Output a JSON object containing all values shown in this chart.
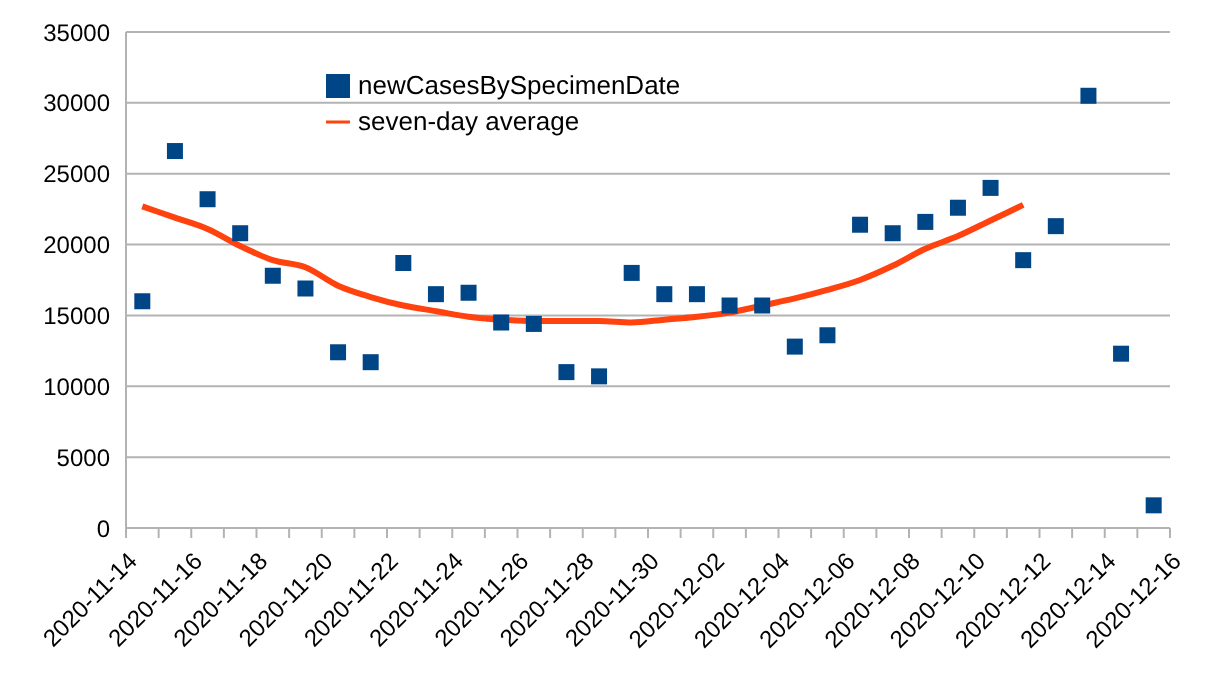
{
  "chart_data": {
    "type": "scatter",
    "series": [
      {
        "name": "newCasesBySpecimenDate",
        "color": "#004586",
        "x": [
          "2020-11-14T12:00",
          "2020-11-15T12:00",
          "2020-11-16T12:00",
          "2020-11-17T12:00",
          "2020-11-18T12:00",
          "2020-11-19T12:00",
          "2020-11-20T12:00",
          "2020-11-21T12:00",
          "2020-11-22T12:00",
          "2020-11-23T12:00",
          "2020-11-24T12:00",
          "2020-11-25T12:00",
          "2020-11-26T12:00",
          "2020-11-27T12:00",
          "2020-11-28T12:00",
          "2020-11-29T12:00",
          "2020-11-30T12:00",
          "2020-12-01T12:00",
          "2020-12-02T12:00",
          "2020-12-03T12:00",
          "2020-12-04T12:00",
          "2020-12-05T12:00",
          "2020-12-06T12:00",
          "2020-12-07T12:00",
          "2020-12-08T12:00",
          "2020-12-09T12:00",
          "2020-12-10T12:00",
          "2020-12-11T12:00",
          "2020-12-12T12:00",
          "2020-12-13T12:00",
          "2020-12-14T12:00",
          "2020-12-15T12:00"
        ],
        "values": [
          16000,
          26600,
          23200,
          20800,
          17800,
          16900,
          12400,
          11700,
          18700,
          16500,
          16600,
          14500,
          14400,
          11000,
          10700,
          18000,
          16500,
          16500,
          15700,
          15700,
          12800,
          13600,
          21400,
          20800,
          21600,
          22600,
          24000,
          18900,
          21300,
          30500,
          12300,
          1600
        ],
        "marker": "square"
      },
      {
        "name": "seven-day average",
        "type": "line",
        "color": "#ff420e",
        "x": [
          "2020-11-14T12:00",
          "2020-11-15T12:00",
          "2020-11-16T12:00",
          "2020-11-17T12:00",
          "2020-11-18T12:00",
          "2020-11-19T12:00",
          "2020-11-20T12:00",
          "2020-11-21T12:00",
          "2020-11-22T12:00",
          "2020-11-23T12:00",
          "2020-11-24T12:00",
          "2020-11-25T12:00",
          "2020-11-26T12:00",
          "2020-11-27T12:00",
          "2020-11-28T12:00",
          "2020-11-29T12:00",
          "2020-11-30T12:00",
          "2020-12-01T12:00",
          "2020-12-02T12:00",
          "2020-12-03T12:00",
          "2020-12-04T12:00",
          "2020-12-05T12:00",
          "2020-12-06T12:00",
          "2020-12-07T12:00",
          "2020-12-08T12:00",
          "2020-12-09T12:00",
          "2020-12-10T12:00",
          "2020-12-11T12:00"
        ],
        "values": [
          22700,
          21900,
          21100,
          19900,
          18900,
          18400,
          17100,
          16300,
          15700,
          15300,
          14900,
          14700,
          14600,
          14600,
          14600,
          14500,
          14700,
          14900,
          15200,
          15700,
          16200,
          16800,
          17500,
          18500,
          19700,
          20600,
          21700,
          22800
        ],
        "marker": "none",
        "line_style": "solid"
      }
    ],
    "xlim": [
      "2020-11-14",
      "2020-12-16"
    ],
    "xticks": [
      "2020-11-14",
      {
        "value": "2020-11-15",
        "label": null
      },
      "2020-11-16",
      {
        "value": "2020-11-17",
        "label": null
      },
      "2020-11-18",
      {
        "value": "2020-11-19",
        "label": null
      },
      "2020-11-20",
      {
        "value": "2020-11-21",
        "label": null
      },
      "2020-11-22",
      {
        "value": "2020-11-23",
        "label": null
      },
      "2020-11-24",
      {
        "value": "2020-11-25",
        "label": null
      },
      "2020-11-26",
      {
        "value": "2020-11-27",
        "label": null
      },
      "2020-11-28",
      {
        "value": "2020-11-29",
        "label": null
      },
      "2020-11-30",
      {
        "value": "2020-12-01",
        "label": null
      },
      "2020-12-02",
      {
        "value": "2020-12-03",
        "label": null
      },
      "2020-12-04",
      {
        "value": "2020-12-05",
        "label": null
      },
      "2020-12-06",
      {
        "value": "2020-12-07",
        "label": null
      },
      "2020-12-08",
      {
        "value": "2020-12-09",
        "label": null
      },
      "2020-12-10",
      {
        "value": "2020-12-11",
        "label": null
      },
      "2020-12-12",
      {
        "value": "2020-12-13",
        "label": null
      },
      "2020-12-14",
      {
        "value": "2020-12-15",
        "label": null
      },
      "2020-12-16"
    ],
    "ylim": [
      0,
      35000
    ],
    "yticks": [
      0,
      5000,
      10000,
      15000,
      20000,
      25000,
      30000,
      35000
    ],
    "grid": "y",
    "legend": "top"
  }
}
